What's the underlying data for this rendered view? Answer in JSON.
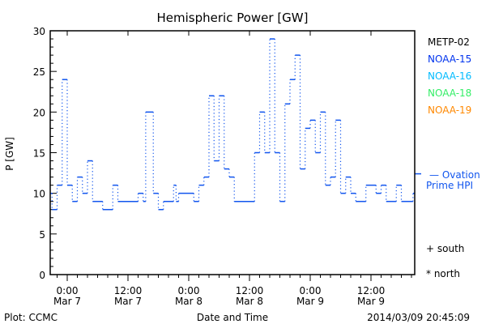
{
  "chart_data": {
    "type": "line",
    "title": "Hemispheric Power [GW]",
    "xlabel": "Date and Time",
    "ylabel": "P [GW]",
    "ylim": [
      0,
      30
    ],
    "xlim_hours_from_mar7": [
      -3.36,
      68.64
    ],
    "yticks": [
      0,
      5,
      10,
      15,
      20,
      25,
      30
    ],
    "xticks": [
      {
        "t": 0,
        "line1": "0:00",
        "line2": "Mar 7"
      },
      {
        "t": 12,
        "line1": "12:00",
        "line2": "Mar 7"
      },
      {
        "t": 24,
        "line1": "0:00",
        "line2": "Mar 8"
      },
      {
        "t": 36,
        "line1": "12:00",
        "line2": "Mar 8"
      },
      {
        "t": 48,
        "line1": "0:00",
        "line2": "Mar 9"
      },
      {
        "t": 60,
        "line1": "12:00",
        "line2": "Mar 9"
      }
    ],
    "legend": [
      {
        "name": "METP-02",
        "color": "#000000"
      },
      {
        "name": "NOAA-15",
        "color": "#0033ee"
      },
      {
        "name": "NOAA-16",
        "color": "#00bbff"
      },
      {
        "name": "NOAA-18",
        "color": "#33ee66"
      },
      {
        "name": "NOAA-19",
        "color": "#ff8800"
      }
    ],
    "series": [
      {
        "name": "NOAA-15",
        "color": "#1155ee",
        "steps": [
          [
            -3.36,
            10
          ],
          [
            -3,
            8
          ],
          [
            -2,
            11
          ],
          [
            -1,
            24
          ],
          [
            0,
            11
          ],
          [
            1,
            9
          ],
          [
            2,
            12
          ],
          [
            3,
            10
          ],
          [
            4,
            14
          ],
          [
            5,
            9
          ],
          [
            7,
            8
          ],
          [
            9,
            11
          ],
          [
            10,
            9
          ],
          [
            14,
            10
          ],
          [
            15,
            9
          ],
          [
            15.5,
            20
          ],
          [
            17,
            10
          ],
          [
            18,
            8
          ],
          [
            19,
            9
          ],
          [
            21,
            11
          ],
          [
            21.5,
            9
          ],
          [
            22,
            10
          ],
          [
            25,
            9
          ],
          [
            26,
            11
          ],
          [
            27,
            12
          ],
          [
            28,
            22
          ],
          [
            29,
            14
          ],
          [
            30,
            22
          ],
          [
            31,
            13
          ],
          [
            32,
            12
          ],
          [
            33,
            9
          ],
          [
            37,
            15
          ],
          [
            38,
            20
          ],
          [
            39,
            15
          ],
          [
            40,
            29
          ],
          [
            41,
            15
          ],
          [
            42,
            9
          ],
          [
            43,
            21
          ],
          [
            44,
            24
          ],
          [
            45,
            27
          ],
          [
            46,
            13
          ],
          [
            47,
            18
          ],
          [
            48,
            19
          ],
          [
            49,
            15
          ],
          [
            50,
            20
          ],
          [
            51,
            11
          ],
          [
            52,
            12
          ],
          [
            53,
            19
          ],
          [
            54,
            10
          ],
          [
            55,
            12
          ],
          [
            56,
            10
          ],
          [
            57,
            9
          ],
          [
            59,
            11
          ],
          [
            61,
            10
          ],
          [
            62,
            11
          ],
          [
            63,
            9
          ],
          [
            65,
            11
          ],
          [
            66,
            9
          ],
          [
            68.3,
            10
          ]
        ]
      }
    ],
    "ovation": {
      "value": 12.4,
      "label1": "— Ovation",
      "label2": "Prime HPI",
      "color": "#1155ee"
    },
    "markers": {
      "south": "+ south",
      "north": "* north"
    },
    "footer_left": "Plot: CCMC",
    "footer_right": "2014/03/09 20:45:09"
  }
}
